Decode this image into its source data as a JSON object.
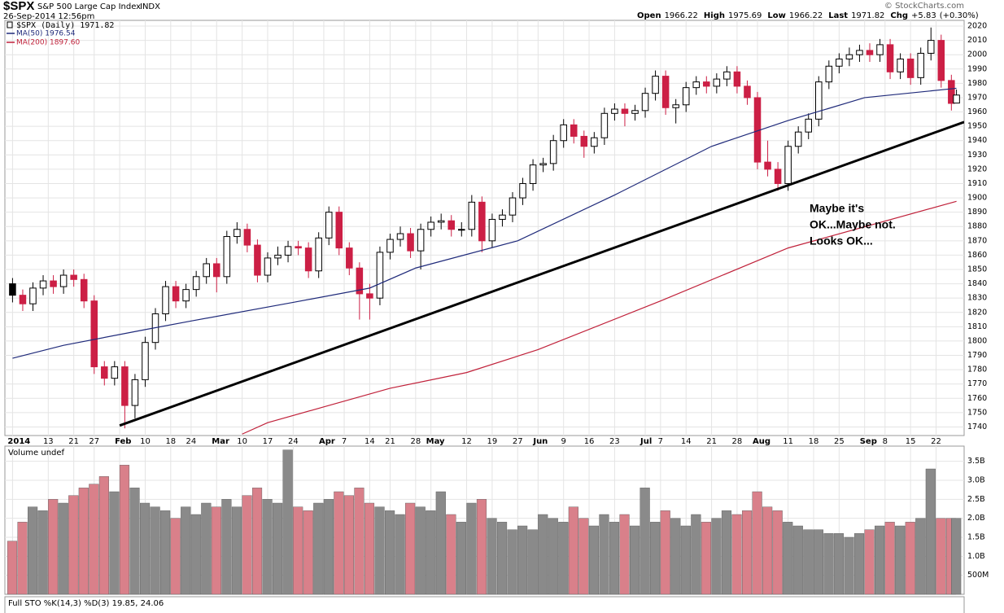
{
  "chart_data": {
    "type": "candlestick",
    "title": "$SPX",
    "subtitle": "S&P 500 Large Cap Index",
    "exchange": "INDX",
    "timestamp": "26-Sep-2014 12:56pm",
    "source": "© StockCharts.com",
    "quote": [
      {
        "label": "Open",
        "value": 1966.22
      },
      {
        "label": "High",
        "value": 1975.69
      },
      {
        "label": "Low",
        "value": 1966.22
      },
      {
        "label": "Last",
        "value": 1971.82
      },
      {
        "label": "Chg",
        "value": "+5.83",
        "percent": "(+0.30%)"
      }
    ],
    "legend_label": "$SPX (Daily) 1971.82",
    "up_color": "#000000",
    "down_color": "#cc1f45",
    "x": [
      0,
      2,
      4,
      6,
      8,
      10,
      12,
      14,
      16,
      18,
      20,
      22,
      24,
      26,
      28,
      30,
      32,
      34,
      36,
      38,
      40,
      42,
      44,
      46,
      48,
      50,
      52,
      54,
      56,
      58,
      60,
      62,
      64,
      66,
      68,
      70,
      72,
      74,
      76,
      78,
      80,
      82,
      84,
      86,
      88,
      90,
      92,
      94,
      96,
      98,
      100,
      102,
      104,
      106,
      108,
      110,
      112,
      114,
      116,
      118,
      120,
      122,
      124,
      126,
      128,
      130,
      132,
      134,
      136,
      138,
      140,
      142,
      144,
      146,
      148,
      150,
      152,
      154,
      156,
      158,
      160,
      162,
      164,
      166,
      168,
      170,
      172,
      174,
      176,
      178,
      180,
      182,
      184,
      185
    ],
    "open": [
      1840,
      1832,
      1826,
      1837,
      1842,
      1838,
      1846,
      1843,
      1828,
      1782,
      1774,
      1782,
      1755,
      1773,
      1799,
      1819,
      1838,
      1828,
      1836,
      1845,
      1854,
      1845,
      1873,
      1878,
      1867,
      1846,
      1858,
      1860,
      1866,
      1865,
      1849,
      1872,
      1890,
      1865,
      1851,
      1833,
      1830,
      1862,
      1871,
      1875,
      1863,
      1878,
      1883,
      1884,
      1878,
      1878,
      1897,
      1870,
      1885,
      1888,
      1900,
      1910,
      1923,
      1924,
      1940,
      1951,
      1943,
      1936,
      1942,
      1959,
      1962,
      1959,
      1961,
      1973,
      1985,
      1963,
      1965,
      1977,
      1981,
      1978,
      1983,
      1988,
      1978,
      1970,
      1925,
      1920,
      1910,
      1936,
      1946,
      1955,
      1981,
      1992,
      1997,
      2000,
      2003,
      2000,
      2007,
      1988,
      1997,
      1984,
      2001,
      2010,
      1982,
      1966.22
    ],
    "high": [
      1844,
      1836,
      1841,
      1846,
      1846,
      1850,
      1850,
      1847,
      1832,
      1786,
      1786,
      1786,
      1777,
      1803,
      1823,
      1842,
      1842,
      1840,
      1849,
      1858,
      1858,
      1877,
      1883,
      1882,
      1871,
      1862,
      1866,
      1870,
      1870,
      1869,
      1876,
      1894,
      1894,
      1869,
      1855,
      1840,
      1866,
      1875,
      1880,
      1879,
      1882,
      1887,
      1889,
      1888,
      1883,
      1902,
      1901,
      1889,
      1892,
      1904,
      1914,
      1927,
      1928,
      1944,
      1955,
      1955,
      1947,
      1946,
      1963,
      1966,
      1966,
      1965,
      1977,
      1989,
      1989,
      1969,
      1981,
      1985,
      1985,
      1987,
      1992,
      1992,
      1982,
      1974,
      1940,
      1925,
      1940,
      1950,
      1959,
      1985,
      1996,
      2001,
      2005,
      2007,
      2008,
      2011,
      2011,
      2001,
      2001,
      2005,
      2019,
      2014,
      1986,
      1975.69
    ],
    "low": [
      1827,
      1821,
      1821,
      1832,
      1833,
      1833,
      1838,
      1823,
      1777,
      1769,
      1769,
      1739,
      1746,
      1768,
      1794,
      1814,
      1823,
      1823,
      1831,
      1840,
      1834,
      1840,
      1868,
      1862,
      1841,
      1841,
      1853,
      1855,
      1860,
      1844,
      1844,
      1867,
      1860,
      1846,
      1815,
      1815,
      1825,
      1857,
      1866,
      1858,
      1850,
      1873,
      1878,
      1873,
      1873,
      1873,
      1862,
      1865,
      1880,
      1883,
      1895,
      1905,
      1918,
      1919,
      1935,
      1938,
      1928,
      1931,
      1937,
      1954,
      1950,
      1954,
      1956,
      1968,
      1958,
      1952,
      1960,
      1972,
      1973,
      1973,
      1978,
      1973,
      1965,
      1920,
      1915,
      1905,
      1905,
      1931,
      1941,
      1950,
      1976,
      1987,
      1992,
      1995,
      1995,
      1995,
      1983,
      1983,
      1979,
      1979,
      1996,
      1977,
      1961,
      1966.22
    ],
    "close": [
      1832,
      1826,
      1837,
      1842,
      1838,
      1846,
      1843,
      1828,
      1782,
      1774,
      1782,
      1755,
      1773,
      1799,
      1819,
      1838,
      1828,
      1836,
      1845,
      1854,
      1845,
      1873,
      1878,
      1867,
      1846,
      1858,
      1860,
      1866,
      1865,
      1849,
      1872,
      1890,
      1865,
      1851,
      1833,
      1830,
      1862,
      1871,
      1875,
      1863,
      1878,
      1883,
      1884,
      1878,
      1878,
      1897,
      1870,
      1885,
      1888,
      1900,
      1910,
      1923,
      1924,
      1940,
      1951,
      1943,
      1936,
      1942,
      1959,
      1962,
      1959,
      1961,
      1973,
      1985,
      1963,
      1965,
      1977,
      1981,
      1978,
      1983,
      1988,
      1978,
      1970,
      1925,
      1920,
      1910,
      1936,
      1946,
      1955,
      1981,
      1992,
      1997,
      2000,
      2003,
      2000,
      2007,
      1988,
      1997,
      1984,
      2001,
      2010,
      1982,
      1966,
      1971.82
    ],
    "xlim": [
      -1.5,
      186.5
    ],
    "xticks": [
      {
        "value": 0,
        "label": "2014"
      },
      {
        "value": 7,
        "label": "13"
      },
      {
        "value": 12,
        "label": "21"
      },
      {
        "value": 16,
        "label": "27"
      },
      {
        "value": 21,
        "label": "Feb"
      },
      {
        "value": 26,
        "label": "10"
      },
      {
        "value": 31,
        "label": "18"
      },
      {
        "value": 35,
        "label": "24"
      },
      {
        "value": 40,
        "label": "Mar"
      },
      {
        "value": 45,
        "label": "10"
      },
      {
        "value": 50,
        "label": "17"
      },
      {
        "value": 55,
        "label": "24"
      },
      {
        "value": 61,
        "label": "Apr"
      },
      {
        "value": 65,
        "label": "7"
      },
      {
        "value": 70,
        "label": "14"
      },
      {
        "value": 74,
        "label": "21"
      },
      {
        "value": 79,
        "label": "28"
      },
      {
        "value": 82,
        "label": "May"
      },
      {
        "value": 89,
        "label": "12"
      },
      {
        "value": 94,
        "label": "19"
      },
      {
        "value": 99,
        "label": "27"
      },
      {
        "value": 103,
        "label": "Jun"
      },
      {
        "value": 108,
        "label": "9"
      },
      {
        "value": 113,
        "label": "16"
      },
      {
        "value": 118,
        "label": "23"
      },
      {
        "value": 124,
        "label": "Jul"
      },
      {
        "value": 127,
        "label": "7"
      },
      {
        "value": 132,
        "label": "14"
      },
      {
        "value": 137,
        "label": "21"
      },
      {
        "value": 142,
        "label": "28"
      },
      {
        "value": 146,
        "label": "Aug"
      },
      {
        "value": 152,
        "label": "11"
      },
      {
        "value": 157,
        "label": "18"
      },
      {
        "value": 162,
        "label": "25"
      },
      {
        "value": 167,
        "label": "Sep"
      },
      {
        "value": 171,
        "label": "8"
      },
      {
        "value": 176,
        "label": "15"
      },
      {
        "value": 181,
        "label": "22"
      }
    ],
    "ylim": [
      1734,
      2024
    ],
    "yticks": [
      1740,
      1750,
      1760,
      1770,
      1780,
      1790,
      1800,
      1810,
      1820,
      1830,
      1840,
      1850,
      1860,
      1870,
      1880,
      1890,
      1900,
      1910,
      1920,
      1930,
      1940,
      1950,
      1960,
      1970,
      1980,
      1990,
      2000,
      2010,
      2020
    ],
    "grid": true,
    "overlays": [
      {
        "name": "MA(50) 1976.54",
        "color": "#1f2a7a",
        "x": [
          0,
          10,
          26,
          35,
          55,
          70,
          79,
          99,
          118,
          137,
          152,
          167,
          185
        ],
        "values": [
          1788,
          1797,
          1808,
          1814,
          1827,
          1837,
          1851,
          1870,
          1902,
          1936,
          1954,
          1970,
          1976.54
        ]
      },
      {
        "name": "MA(200) 1897.60",
        "color": "#c0213a",
        "x": [
          45,
          50,
          61,
          74,
          89,
          103,
          127,
          152,
          185
        ],
        "values": [
          1735,
          1743,
          1754,
          1767,
          1778,
          1794,
          1828,
          1865,
          1897.6
        ]
      }
    ],
    "trendline": {
      "color": "#000000",
      "x": [
        21,
        186.5
      ],
      "values": [
        1741,
        1953
      ]
    },
    "annotation": [
      "Maybe it's",
      "OK...Maybe not.",
      "Looks OK..."
    ],
    "volume": {
      "title": "Volume undef",
      "up_color": "#8a8a8a",
      "down_color": "#d9808a",
      "values": [
        1.4,
        1.9,
        2.3,
        2.2,
        2.5,
        2.4,
        2.6,
        2.8,
        2.9,
        3.1,
        2.7,
        3.4,
        2.8,
        2.4,
        2.3,
        2.2,
        2.0,
        2.3,
        2.1,
        2.4,
        2.3,
        2.5,
        2.3,
        2.6,
        2.8,
        2.5,
        2.4,
        3.8,
        2.3,
        2.2,
        2.4,
        2.5,
        2.7,
        2.6,
        2.8,
        2.4,
        2.3,
        2.2,
        2.1,
        2.4,
        2.3,
        2.2,
        2.7,
        2.1,
        1.9,
        2.4,
        2.5,
        2.0,
        1.9,
        1.7,
        1.8,
        1.7,
        2.1,
        2.0,
        1.9,
        2.3,
        2.0,
        1.8,
        2.1,
        1.9,
        2.1,
        1.8,
        2.8,
        1.9,
        2.2,
        2.0,
        1.8,
        2.1,
        1.9,
        2.0,
        2.2,
        2.1,
        2.2,
        2.7,
        2.3,
        2.2,
        1.9,
        1.8,
        1.7,
        1.7,
        1.6,
        1.6,
        1.5,
        1.6,
        1.7,
        1.8,
        1.9,
        1.8,
        1.9,
        2.0,
        3.3,
        2.0,
        2.0,
        2.0
      ],
      "ylim": [
        0,
        3.9
      ],
      "yticks": [
        {
          "value": 0.5,
          "label": "500M"
        },
        {
          "value": 1,
          "label": "1.0B"
        },
        {
          "value": 1.5,
          "label": "1.5B"
        },
        {
          "value": 2,
          "label": "2.0B"
        },
        {
          "value": 2.5,
          "label": "2.5B"
        },
        {
          "value": 3,
          "label": "3.0B"
        },
        {
          "value": 3.5,
          "label": "3.5B"
        }
      ]
    },
    "indicator": {
      "title": "Full STO %K(14,3) %D(3) 19.85, 24.06"
    }
  }
}
